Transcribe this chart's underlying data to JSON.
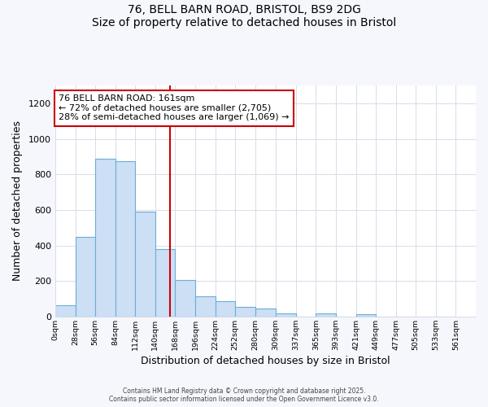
{
  "title_line1": "76, BELL BARN ROAD, BRISTOL, BS9 2DG",
  "title_line2": "Size of property relative to detached houses in Bristol",
  "xlabel": "Distribution of detached houses by size in Bristol",
  "ylabel": "Number of detached properties",
  "bin_labels": [
    "0sqm",
    "28sqm",
    "56sqm",
    "84sqm",
    "112sqm",
    "140sqm",
    "168sqm",
    "196sqm",
    "224sqm",
    "252sqm",
    "280sqm",
    "309sqm",
    "337sqm",
    "365sqm",
    "393sqm",
    "421sqm",
    "449sqm",
    "477sqm",
    "505sqm",
    "533sqm",
    "561sqm"
  ],
  "bin_edges": [
    0,
    28,
    56,
    84,
    112,
    140,
    168,
    196,
    224,
    252,
    280,
    309,
    337,
    365,
    393,
    421,
    449,
    477,
    505,
    533,
    561
  ],
  "bar_heights": [
    65,
    450,
    890,
    875,
    590,
    380,
    205,
    115,
    85,
    55,
    45,
    18,
    0,
    18,
    0,
    15,
    0,
    0,
    0,
    0
  ],
  "bar_facecolor": "#ccdff5",
  "bar_edgecolor": "#6baed6",
  "grid_color": "#d8dce8",
  "background_color": "#ffffff",
  "fig_background_color": "#f5f7fd",
  "vline_x": 161,
  "vline_color": "#cc0000",
  "annotation_text": "76 BELL BARN ROAD: 161sqm\n← 72% of detached houses are smaller (2,705)\n28% of semi-detached houses are larger (1,069) →",
  "footer_line1": "Contains HM Land Registry data © Crown copyright and database right 2025.",
  "footer_line2": "Contains public sector information licensed under the Open Government Licence v3.0.",
  "ylim_max": 1300,
  "yticks": [
    0,
    200,
    400,
    600,
    800,
    1000,
    1200
  ]
}
